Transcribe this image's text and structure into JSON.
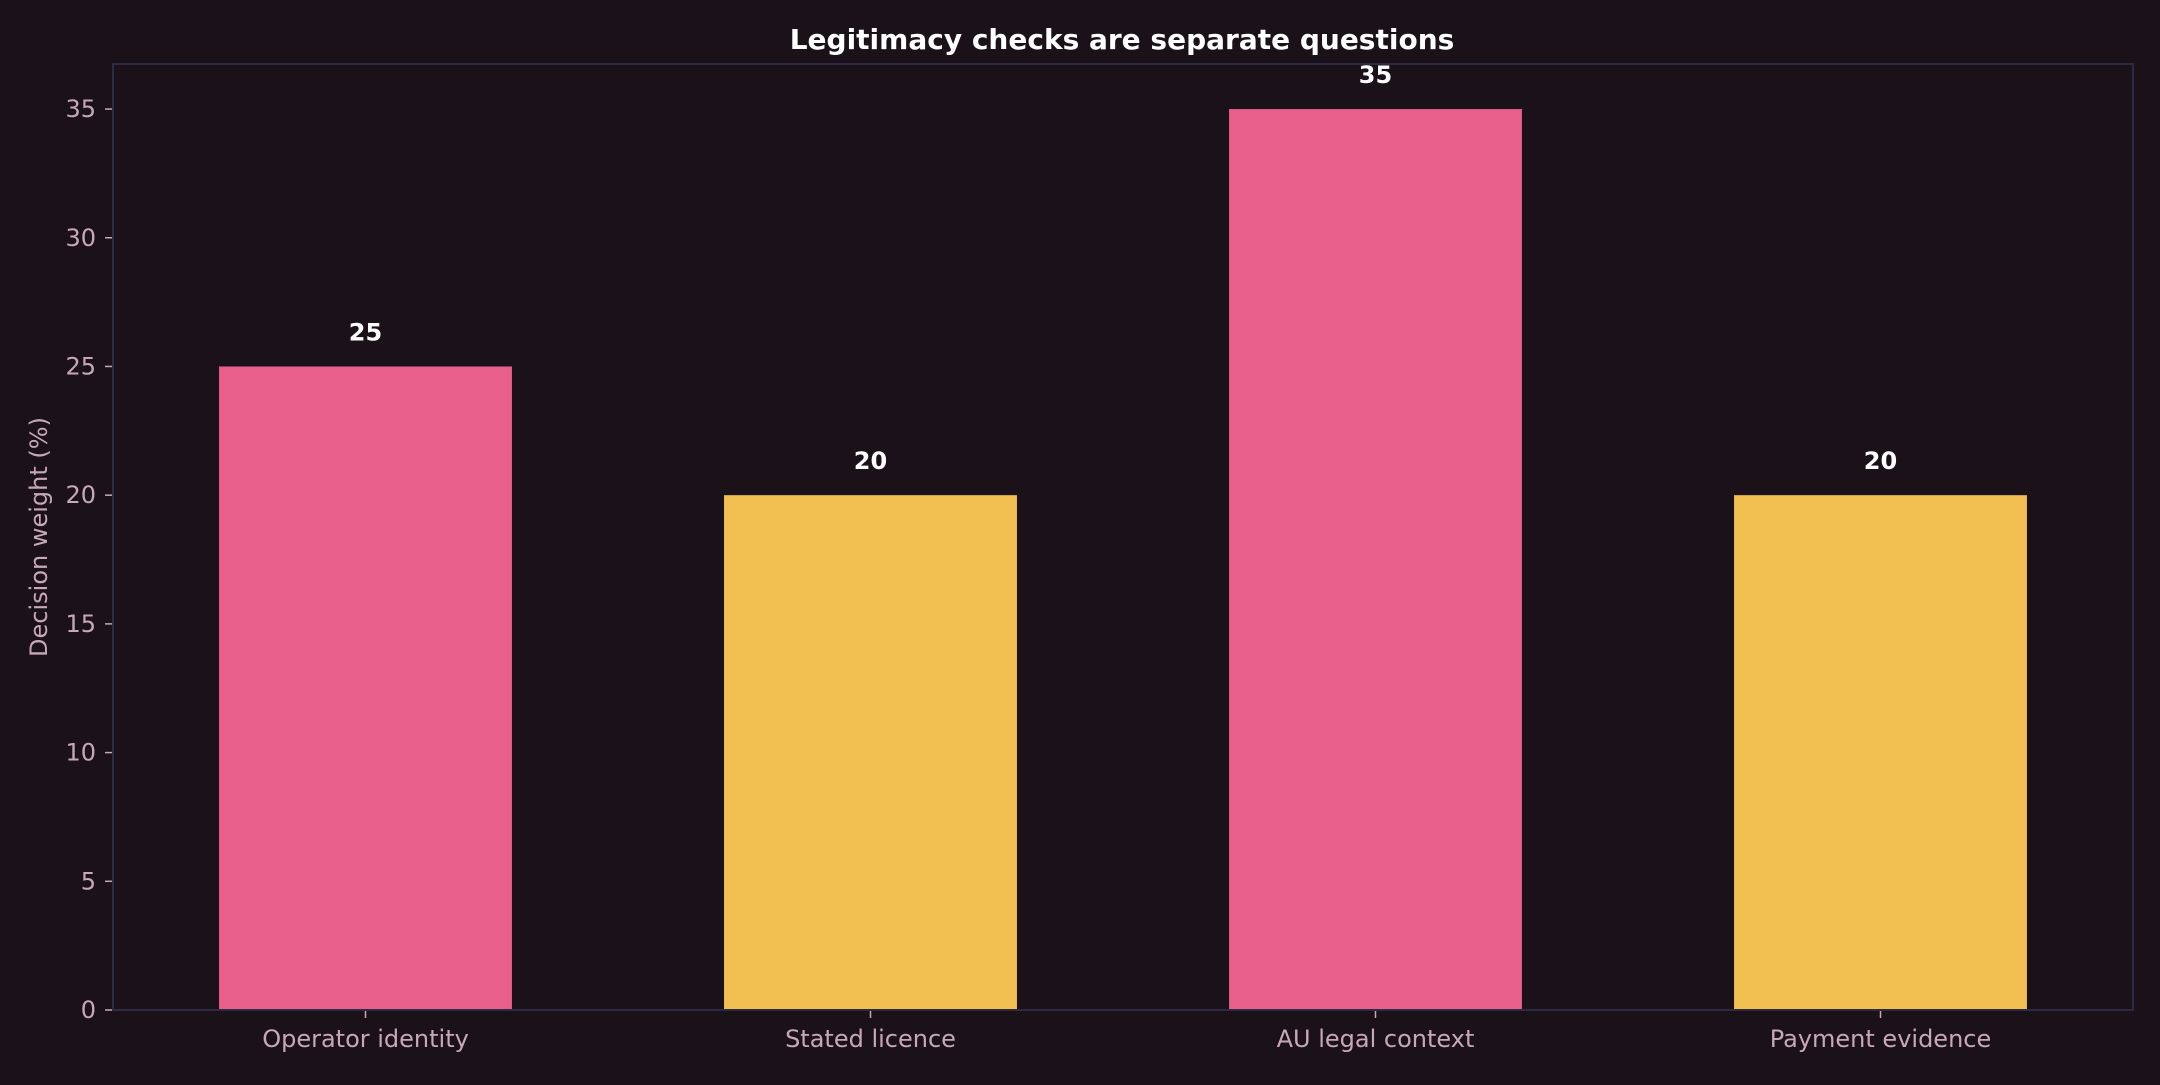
{
  "chart_data": {
    "type": "bar",
    "title": "Legitimacy checks are separate questions",
    "xlabel": "",
    "ylabel": "Decision weight (%)",
    "categories": [
      "Operator identity",
      "Stated licence",
      "AU legal context",
      "Payment evidence"
    ],
    "values": [
      25,
      20,
      35,
      20
    ],
    "bar_colors": [
      "#e85f8b",
      "#f2c050",
      "#e85f8b",
      "#f2c050"
    ],
    "ylim": [
      0,
      36.75
    ],
    "yticks": [
      0,
      5,
      10,
      15,
      20,
      25,
      30,
      35
    ],
    "grid": false,
    "legend": "none",
    "data_labels": true
  },
  "colors": {
    "background": "#1a1119",
    "axes_frame": "#2c2a45",
    "tick_text": "#c8a8b8",
    "title_text": "#ffffff",
    "data_label_text": "#ffffff"
  }
}
